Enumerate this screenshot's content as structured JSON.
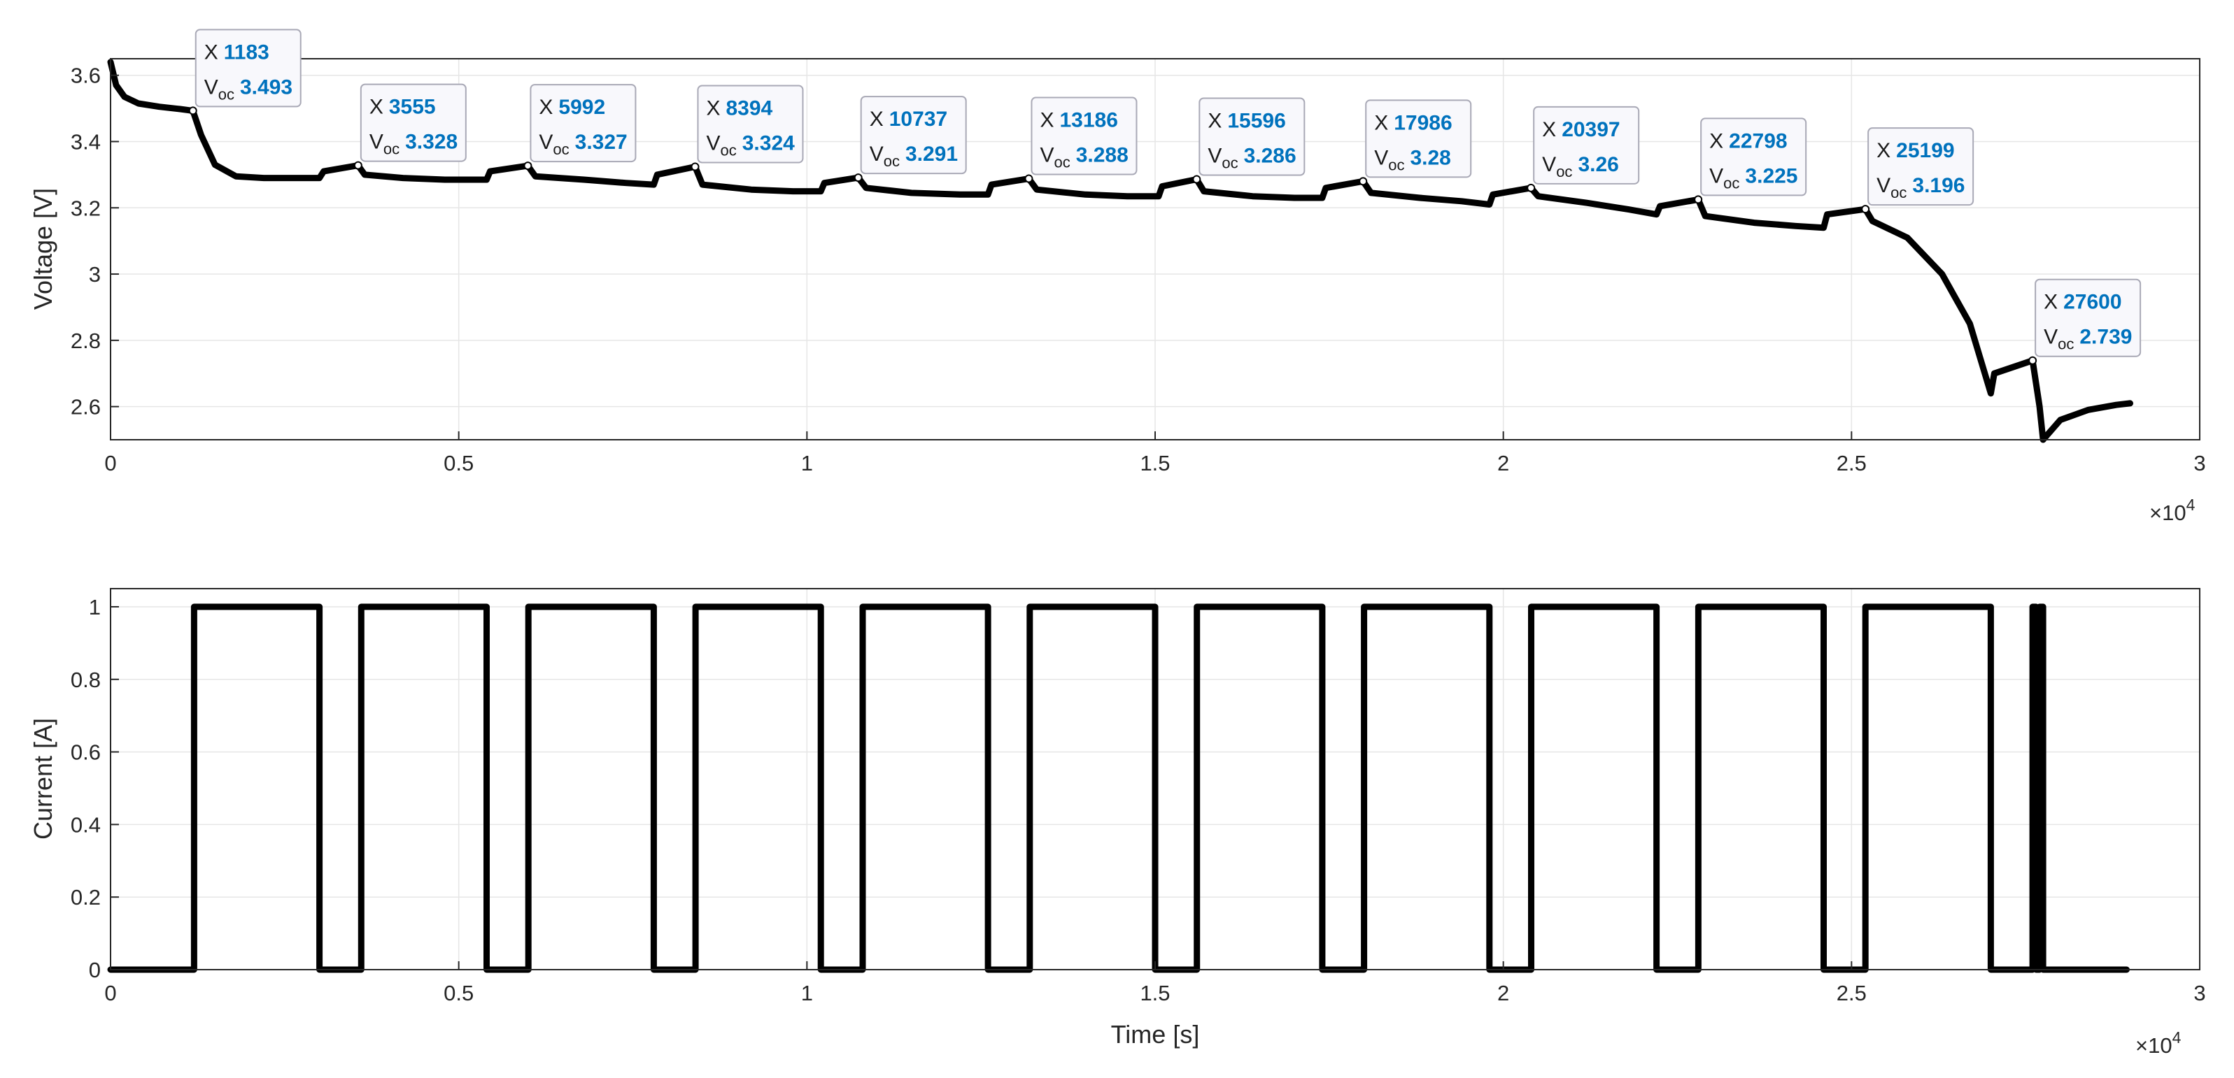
{
  "chart_data": [
    {
      "type": "line",
      "ylabel": "Voltage [V]",
      "xlabel": "",
      "xlim": [
        0,
        30000
      ],
      "ylim": [
        2.5,
        3.65
      ],
      "x_ticks": [
        0,
        5000,
        10000,
        15000,
        20000,
        25000,
        30000
      ],
      "x_tick_labels": [
        "0",
        "0.5",
        "1",
        "1.5",
        "2",
        "2.5",
        "3"
      ],
      "y_ticks": [
        2.6,
        2.8,
        3.0,
        3.2,
        3.4,
        3.6
      ],
      "y_tick_labels": [
        "2.6",
        "2.8",
        "3",
        "3.2",
        "3.4",
        "3.6"
      ],
      "x_exponent_label": "×10",
      "x_exponent_power": "4",
      "grid": true,
      "line_color": "#000000",
      "series": [
        {
          "x": [
            0,
            80,
            200,
            400,
            700,
            1000,
            1183,
            1300,
            1500,
            1800,
            2200,
            2700,
            3000,
            3060,
            3555,
            3650,
            4200,
            4800,
            5400,
            5450,
            5992,
            6100,
            6800,
            7400,
            7800,
            7850,
            8394,
            8500,
            9200,
            9800,
            10200,
            10250,
            10737,
            10850,
            11500,
            12200,
            12600,
            12650,
            13186,
            13300,
            14000,
            14600,
            15050,
            15100,
            15596,
            15700,
            16400,
            17000,
            17400,
            17450,
            17986,
            18100,
            18800,
            19400,
            19800,
            19850,
            20397,
            20500,
            21200,
            21800,
            22200,
            22250,
            22798,
            22900,
            23600,
            24200,
            24600,
            24650,
            25199,
            25300,
            25800,
            26300,
            26700,
            27000,
            27050,
            27600,
            27700,
            27750,
            28000,
            28400,
            28800,
            29000
          ],
          "y": [
            3.64,
            3.57,
            3.535,
            3.515,
            3.505,
            3.498,
            3.493,
            3.42,
            3.33,
            3.295,
            3.29,
            3.29,
            3.29,
            3.31,
            3.328,
            3.3,
            3.29,
            3.285,
            3.285,
            3.31,
            3.327,
            3.295,
            3.285,
            3.275,
            3.27,
            3.3,
            3.324,
            3.27,
            3.255,
            3.25,
            3.25,
            3.275,
            3.291,
            3.26,
            3.245,
            3.24,
            3.24,
            3.27,
            3.288,
            3.255,
            3.24,
            3.235,
            3.235,
            3.265,
            3.286,
            3.25,
            3.235,
            3.23,
            3.23,
            3.26,
            3.28,
            3.245,
            3.23,
            3.22,
            3.21,
            3.24,
            3.26,
            3.235,
            3.215,
            3.195,
            3.18,
            3.205,
            3.225,
            3.175,
            3.155,
            3.145,
            3.14,
            3.18,
            3.196,
            3.16,
            3.11,
            3.0,
            2.85,
            2.64,
            2.7,
            2.739,
            2.6,
            2.5,
            2.56,
            2.59,
            2.605,
            2.61
          ]
        }
      ],
      "annotations": [
        {
          "x": 1183,
          "v": 3.493,
          "x_key": "X",
          "x_text": "1183",
          "v_key": "V",
          "v_sub": "oc",
          "v_text": "3.493"
        },
        {
          "x": 3555,
          "v": 3.328,
          "x_key": "X",
          "x_text": "3555",
          "v_key": "V",
          "v_sub": "oc",
          "v_text": "3.328"
        },
        {
          "x": 5992,
          "v": 3.327,
          "x_key": "X",
          "x_text": "5992",
          "v_key": "V",
          "v_sub": "oc",
          "v_text": "3.327"
        },
        {
          "x": 8394,
          "v": 3.324,
          "x_key": "X",
          "x_text": "8394",
          "v_key": "V",
          "v_sub": "oc",
          "v_text": "3.324"
        },
        {
          "x": 10737,
          "v": 3.291,
          "x_key": "X",
          "x_text": "10737",
          "v_key": "V",
          "v_sub": "oc",
          "v_text": "3.291"
        },
        {
          "x": 13186,
          "v": 3.288,
          "x_key": "X",
          "x_text": "13186",
          "v_key": "V",
          "v_sub": "oc",
          "v_text": "3.288"
        },
        {
          "x": 15596,
          "v": 3.286,
          "x_key": "X",
          "x_text": "15596",
          "v_key": "V",
          "v_sub": "oc",
          "v_text": "3.286"
        },
        {
          "x": 17986,
          "v": 3.28,
          "x_key": "X",
          "x_text": "17986",
          "v_key": "V",
          "v_sub": "oc",
          "v_text": "3.28"
        },
        {
          "x": 20397,
          "v": 3.26,
          "x_key": "X",
          "x_text": "20397",
          "v_key": "V",
          "v_sub": "oc",
          "v_text": "3.26"
        },
        {
          "x": 22798,
          "v": 3.225,
          "x_key": "X",
          "x_text": "22798",
          "v_key": "V",
          "v_sub": "oc",
          "v_text": "3.225"
        },
        {
          "x": 25199,
          "v": 3.196,
          "x_key": "X",
          "x_text": "25199",
          "v_key": "V",
          "v_sub": "oc",
          "v_text": "3.196"
        },
        {
          "x": 27600,
          "v": 2.739,
          "x_key": "X",
          "x_text": "27600",
          "v_key": "V",
          "v_sub": "oc",
          "v_text": "2.739"
        }
      ]
    },
    {
      "type": "line",
      "ylabel": "Current [A]",
      "xlabel": "Time [s]",
      "xlim": [
        0,
        30000
      ],
      "ylim": [
        0,
        1.05
      ],
      "x_ticks": [
        0,
        5000,
        10000,
        15000,
        20000,
        25000,
        30000
      ],
      "x_tick_labels": [
        "0",
        "0.5",
        "1",
        "1.5",
        "2",
        "2.5",
        "3"
      ],
      "y_ticks": [
        0,
        0.2,
        0.4,
        0.6,
        0.8,
        1.0
      ],
      "y_tick_labels": [
        "0",
        "0.2",
        "0.4",
        "0.6",
        "0.8",
        "1"
      ],
      "x_exponent_label": "×10",
      "x_exponent_power": "4",
      "grid": true,
      "line_color": "#000000",
      "series": [
        {
          "x": [
            0,
            1200,
            1200,
            3000,
            3000,
            3600,
            3600,
            5400,
            5400,
            6000,
            6000,
            7800,
            7800,
            8400,
            8400,
            10200,
            10200,
            10800,
            10800,
            12600,
            12600,
            13200,
            13200,
            15000,
            15000,
            15600,
            15600,
            17400,
            17400,
            18000,
            18000,
            19800,
            19800,
            20400,
            20400,
            22200,
            22200,
            22800,
            22800,
            24600,
            24600,
            25200,
            25200,
            27000,
            27000,
            27600,
            27600,
            27650,
            27650,
            27700,
            27700,
            27750,
            27750,
            27800,
            27800,
            28950
          ],
          "y": [
            0,
            0,
            1,
            1,
            0,
            0,
            1,
            1,
            0,
            0,
            1,
            1,
            0,
            0,
            1,
            1,
            0,
            0,
            1,
            1,
            0,
            0,
            1,
            1,
            0,
            0,
            1,
            1,
            0,
            0,
            1,
            1,
            0,
            0,
            1,
            1,
            0,
            0,
            1,
            1,
            0,
            0,
            1,
            1,
            0,
            0,
            1,
            1,
            0,
            0,
            1,
            1,
            0,
            0,
            0,
            0
          ]
        }
      ]
    }
  ]
}
